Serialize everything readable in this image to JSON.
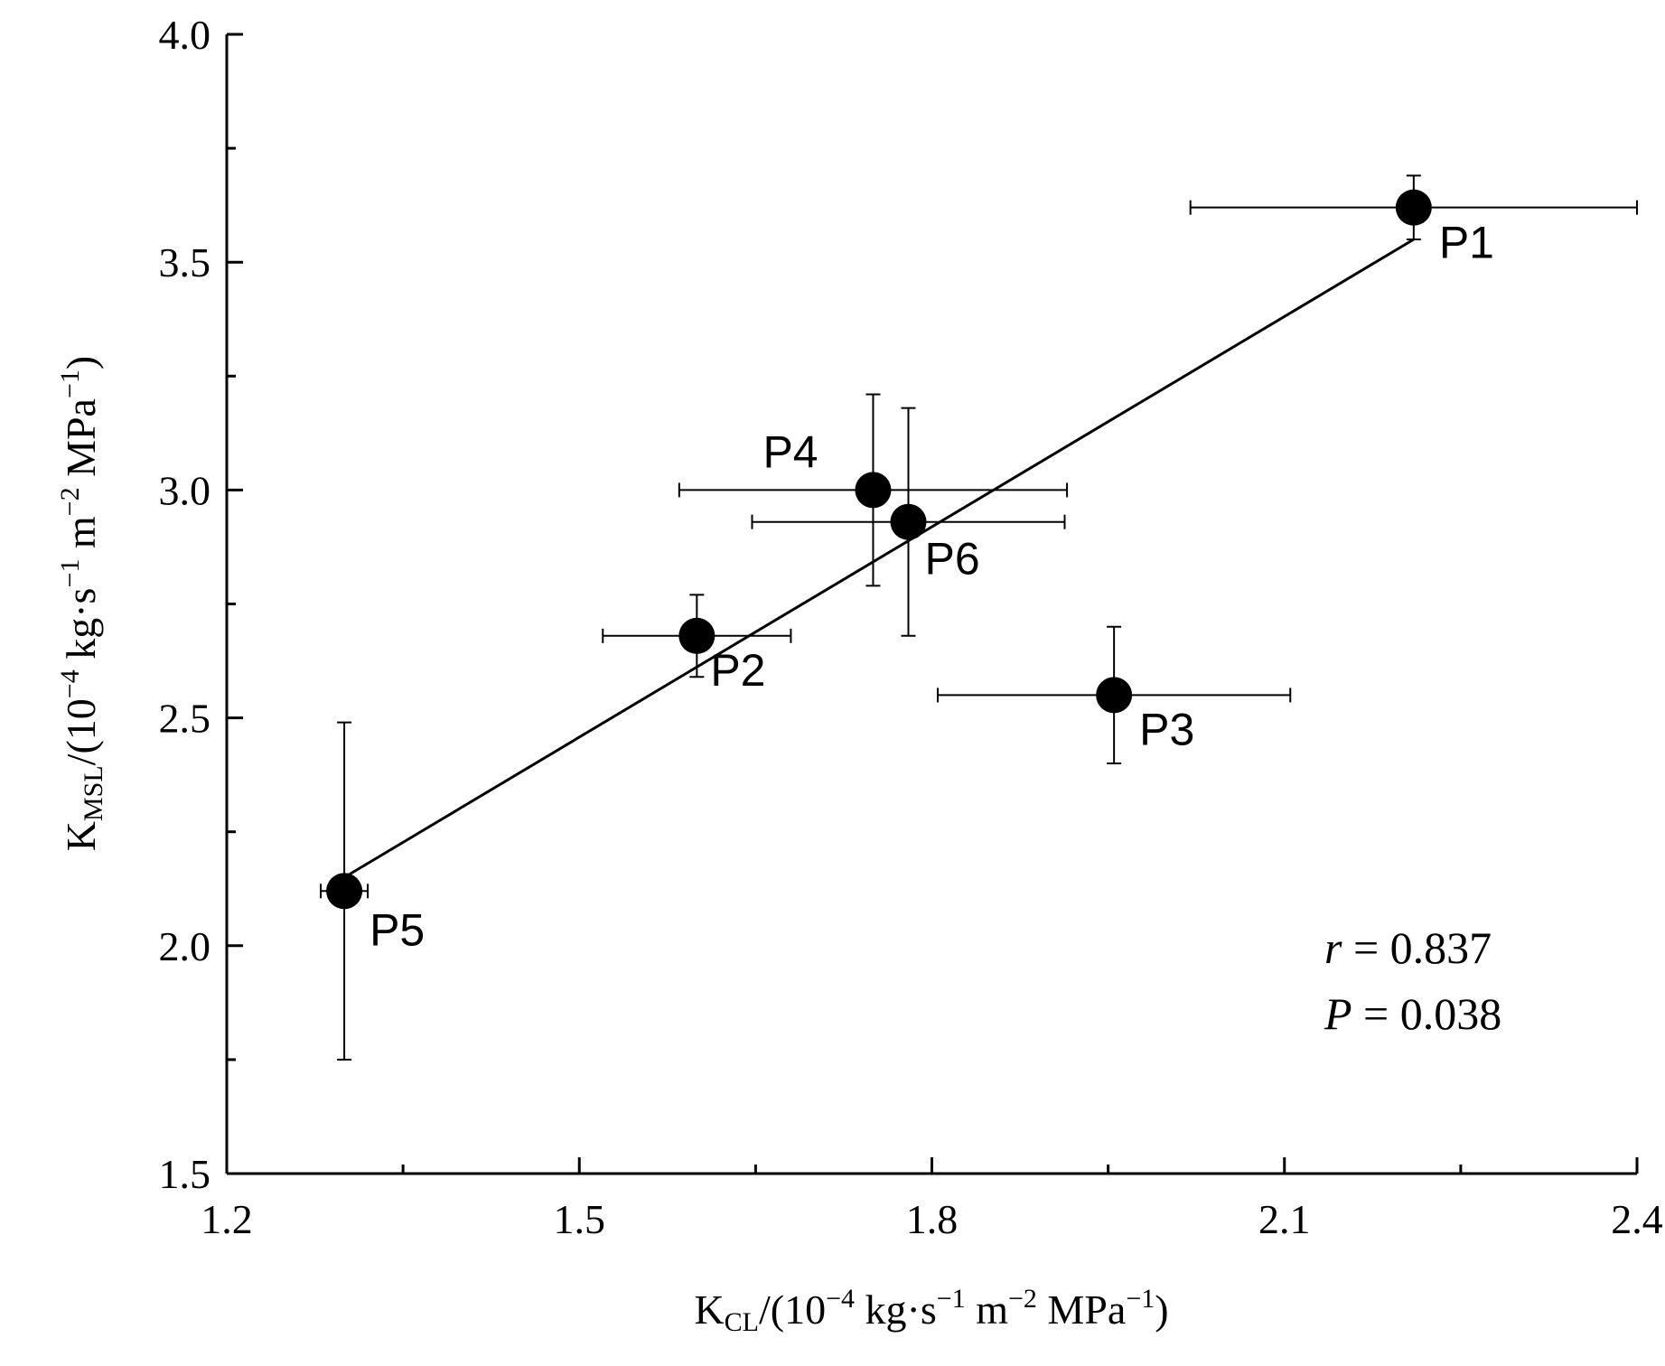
{
  "chart_data": {
    "type": "scatter",
    "x_axis": {
      "label_main": "K",
      "label_sub": "CL",
      "label_rest": "/(10",
      "label_sup1": "−4",
      "label_mid": " kg·s",
      "label_sup2": "−1",
      "label_mid2": " m",
      "label_sup3": "−2",
      "label_mid3": " MPa",
      "label_sup4": "−1",
      "label_end": ")",
      "range": [
        1.2,
        2.4
      ],
      "ticks": [
        "1.2",
        "1.5",
        "1.8",
        "2.1",
        "2.4"
      ]
    },
    "y_axis": {
      "label_main": "K",
      "label_sub": "MSL",
      "label_rest": "/(10",
      "label_sup1": "−4",
      "label_mid": " kg·s",
      "label_sup2": "−1",
      "label_mid2": " m",
      "label_sup3": "−2",
      "label_mid3": " MPa",
      "label_sup4": "−1",
      "label_end": ")",
      "range": [
        1.5,
        4.0
      ],
      "ticks": [
        "1.5",
        "2.0",
        "2.5",
        "3.0",
        "3.5",
        "4.0"
      ]
    },
    "points": [
      {
        "label": "P1",
        "x": 2.21,
        "y": 3.62,
        "x_err": 0.19,
        "y_err": 0.07
      },
      {
        "label": "P2",
        "x": 1.6,
        "y": 2.68,
        "x_err": 0.08,
        "y_err": 0.09
      },
      {
        "label": "P3",
        "x": 1.955,
        "y": 2.55,
        "x_err": 0.15,
        "y_err": 0.15
      },
      {
        "label": "P4",
        "x": 1.75,
        "y": 3.0,
        "x_err": 0.165,
        "y_err": 0.21
      },
      {
        "label": "P5",
        "x": 1.3,
        "y": 2.12,
        "x_err": 0.02,
        "y_err": 0.37
      },
      {
        "label": "P6",
        "x": 1.78,
        "y": 2.93,
        "x_err": 0.133,
        "y_err": 0.25
      }
    ],
    "fit_line": {
      "x": [
        1.3,
        2.21
      ],
      "y": [
        2.15,
        3.55
      ]
    },
    "stats": {
      "r_symbol": "r",
      "r_value": " = 0.837",
      "p_symbol": "P",
      "p_value": " = 0.038"
    },
    "legend": "none",
    "grid": false
  }
}
